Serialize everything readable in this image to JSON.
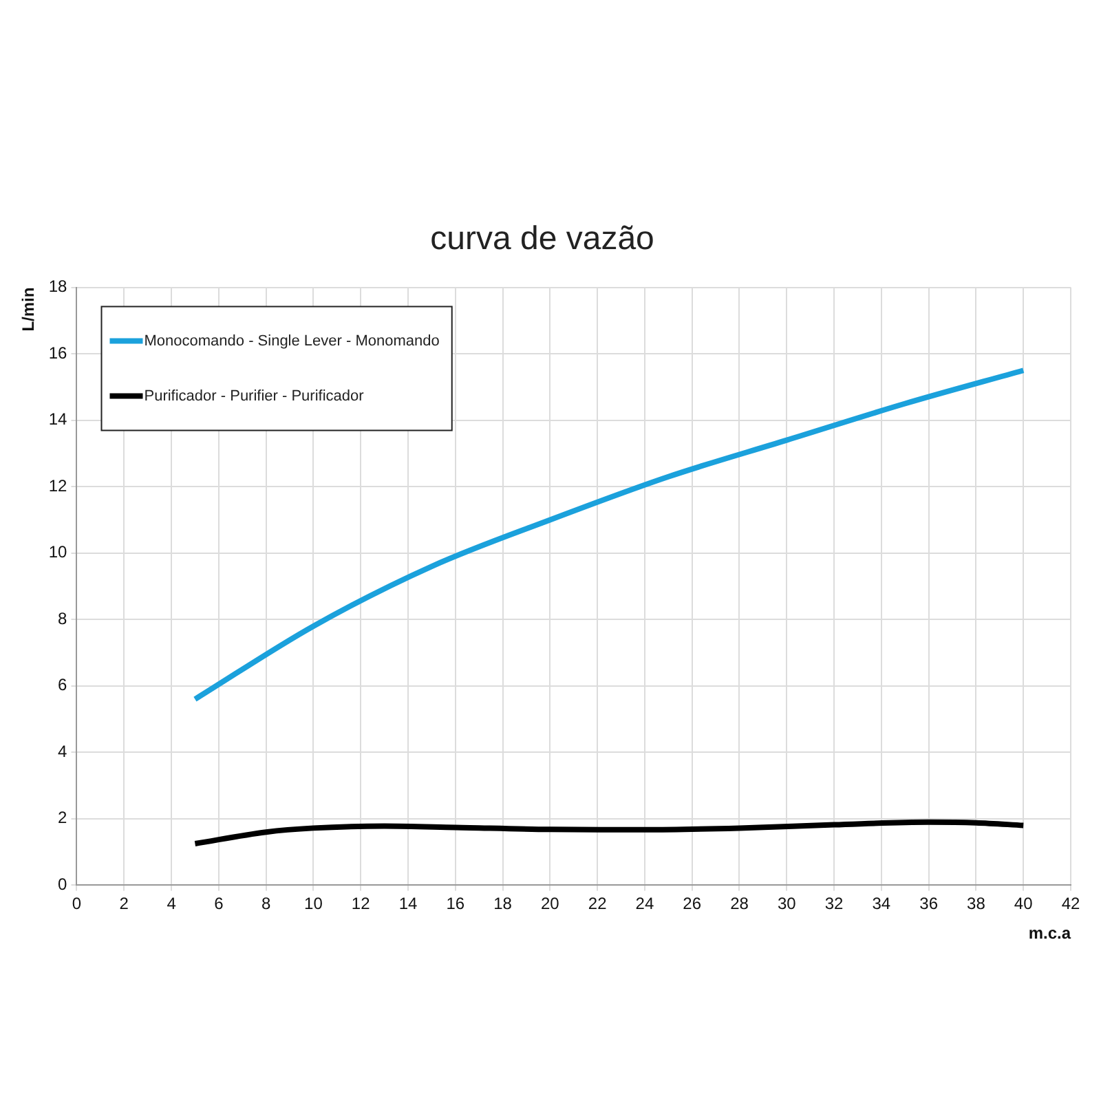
{
  "chart_data": {
    "type": "line",
    "title": "curva de vazão",
    "xlabel": "m.c.a",
    "ylabel": "L/min",
    "xlim": [
      0,
      42
    ],
    "xticks": [
      0,
      2,
      4,
      6,
      8,
      10,
      12,
      14,
      16,
      18,
      20,
      22,
      24,
      26,
      28,
      30,
      32,
      34,
      36,
      38,
      40,
      42
    ],
    "ylim": [
      0,
      18
    ],
    "yticks": [
      0,
      2,
      4,
      6,
      8,
      10,
      12,
      14,
      16,
      18
    ],
    "grid": true,
    "legend": "top left",
    "marker": "none",
    "line_style": "solid",
    "series": [
      {
        "name": "Monocomando - Single Lever - Monomando",
        "color": "#1ba1dc",
        "x": [
          5,
          10,
          15,
          20,
          25,
          30,
          35,
          40
        ],
        "values": [
          5.6,
          7.8,
          9.6,
          11.0,
          12.3,
          13.4,
          14.5,
          15.5
        ]
      },
      {
        "name": "Purificador - Purifier - Purificador",
        "color": "#000000",
        "x": [
          5,
          8,
          10,
          13,
          16,
          20,
          24,
          28,
          32,
          36,
          38,
          40
        ],
        "values": [
          1.25,
          1.6,
          1.72,
          1.78,
          1.74,
          1.68,
          1.67,
          1.72,
          1.82,
          1.9,
          1.88,
          1.8
        ]
      }
    ]
  }
}
